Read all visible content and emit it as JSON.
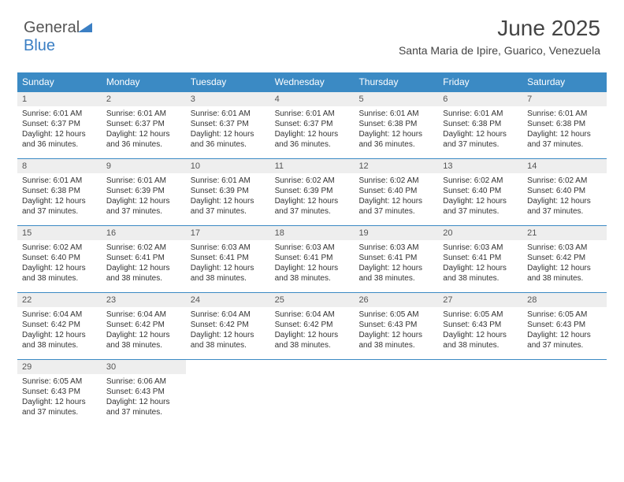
{
  "logo": {
    "part1": "General",
    "part2": "Blue"
  },
  "header": {
    "month": "June 2025",
    "location": "Santa Maria de Ipire, Guarico, Venezuela"
  },
  "colors": {
    "header_bg": "#3b8ac4",
    "header_text": "#ffffff",
    "daynum_bg": "#eeeeee",
    "border": "#3b8ac4",
    "body_text": "#333333"
  },
  "daynames": [
    "Sunday",
    "Monday",
    "Tuesday",
    "Wednesday",
    "Thursday",
    "Friday",
    "Saturday"
  ],
  "weeks": [
    [
      {
        "n": "1",
        "sr": "Sunrise: 6:01 AM",
        "ss": "Sunset: 6:37 PM",
        "dl1": "Daylight: 12 hours",
        "dl2": "and 36 minutes."
      },
      {
        "n": "2",
        "sr": "Sunrise: 6:01 AM",
        "ss": "Sunset: 6:37 PM",
        "dl1": "Daylight: 12 hours",
        "dl2": "and 36 minutes."
      },
      {
        "n": "3",
        "sr": "Sunrise: 6:01 AM",
        "ss": "Sunset: 6:37 PM",
        "dl1": "Daylight: 12 hours",
        "dl2": "and 36 minutes."
      },
      {
        "n": "4",
        "sr": "Sunrise: 6:01 AM",
        "ss": "Sunset: 6:37 PM",
        "dl1": "Daylight: 12 hours",
        "dl2": "and 36 minutes."
      },
      {
        "n": "5",
        "sr": "Sunrise: 6:01 AM",
        "ss": "Sunset: 6:38 PM",
        "dl1": "Daylight: 12 hours",
        "dl2": "and 36 minutes."
      },
      {
        "n": "6",
        "sr": "Sunrise: 6:01 AM",
        "ss": "Sunset: 6:38 PM",
        "dl1": "Daylight: 12 hours",
        "dl2": "and 37 minutes."
      },
      {
        "n": "7",
        "sr": "Sunrise: 6:01 AM",
        "ss": "Sunset: 6:38 PM",
        "dl1": "Daylight: 12 hours",
        "dl2": "and 37 minutes."
      }
    ],
    [
      {
        "n": "8",
        "sr": "Sunrise: 6:01 AM",
        "ss": "Sunset: 6:38 PM",
        "dl1": "Daylight: 12 hours",
        "dl2": "and 37 minutes."
      },
      {
        "n": "9",
        "sr": "Sunrise: 6:01 AM",
        "ss": "Sunset: 6:39 PM",
        "dl1": "Daylight: 12 hours",
        "dl2": "and 37 minutes."
      },
      {
        "n": "10",
        "sr": "Sunrise: 6:01 AM",
        "ss": "Sunset: 6:39 PM",
        "dl1": "Daylight: 12 hours",
        "dl2": "and 37 minutes."
      },
      {
        "n": "11",
        "sr": "Sunrise: 6:02 AM",
        "ss": "Sunset: 6:39 PM",
        "dl1": "Daylight: 12 hours",
        "dl2": "and 37 minutes."
      },
      {
        "n": "12",
        "sr": "Sunrise: 6:02 AM",
        "ss": "Sunset: 6:40 PM",
        "dl1": "Daylight: 12 hours",
        "dl2": "and 37 minutes."
      },
      {
        "n": "13",
        "sr": "Sunrise: 6:02 AM",
        "ss": "Sunset: 6:40 PM",
        "dl1": "Daylight: 12 hours",
        "dl2": "and 37 minutes."
      },
      {
        "n": "14",
        "sr": "Sunrise: 6:02 AM",
        "ss": "Sunset: 6:40 PM",
        "dl1": "Daylight: 12 hours",
        "dl2": "and 37 minutes."
      }
    ],
    [
      {
        "n": "15",
        "sr": "Sunrise: 6:02 AM",
        "ss": "Sunset: 6:40 PM",
        "dl1": "Daylight: 12 hours",
        "dl2": "and 38 minutes."
      },
      {
        "n": "16",
        "sr": "Sunrise: 6:02 AM",
        "ss": "Sunset: 6:41 PM",
        "dl1": "Daylight: 12 hours",
        "dl2": "and 38 minutes."
      },
      {
        "n": "17",
        "sr": "Sunrise: 6:03 AM",
        "ss": "Sunset: 6:41 PM",
        "dl1": "Daylight: 12 hours",
        "dl2": "and 38 minutes."
      },
      {
        "n": "18",
        "sr": "Sunrise: 6:03 AM",
        "ss": "Sunset: 6:41 PM",
        "dl1": "Daylight: 12 hours",
        "dl2": "and 38 minutes."
      },
      {
        "n": "19",
        "sr": "Sunrise: 6:03 AM",
        "ss": "Sunset: 6:41 PM",
        "dl1": "Daylight: 12 hours",
        "dl2": "and 38 minutes."
      },
      {
        "n": "20",
        "sr": "Sunrise: 6:03 AM",
        "ss": "Sunset: 6:41 PM",
        "dl1": "Daylight: 12 hours",
        "dl2": "and 38 minutes."
      },
      {
        "n": "21",
        "sr": "Sunrise: 6:03 AM",
        "ss": "Sunset: 6:42 PM",
        "dl1": "Daylight: 12 hours",
        "dl2": "and 38 minutes."
      }
    ],
    [
      {
        "n": "22",
        "sr": "Sunrise: 6:04 AM",
        "ss": "Sunset: 6:42 PM",
        "dl1": "Daylight: 12 hours",
        "dl2": "and 38 minutes."
      },
      {
        "n": "23",
        "sr": "Sunrise: 6:04 AM",
        "ss": "Sunset: 6:42 PM",
        "dl1": "Daylight: 12 hours",
        "dl2": "and 38 minutes."
      },
      {
        "n": "24",
        "sr": "Sunrise: 6:04 AM",
        "ss": "Sunset: 6:42 PM",
        "dl1": "Daylight: 12 hours",
        "dl2": "and 38 minutes."
      },
      {
        "n": "25",
        "sr": "Sunrise: 6:04 AM",
        "ss": "Sunset: 6:42 PM",
        "dl1": "Daylight: 12 hours",
        "dl2": "and 38 minutes."
      },
      {
        "n": "26",
        "sr": "Sunrise: 6:05 AM",
        "ss": "Sunset: 6:43 PM",
        "dl1": "Daylight: 12 hours",
        "dl2": "and 38 minutes."
      },
      {
        "n": "27",
        "sr": "Sunrise: 6:05 AM",
        "ss": "Sunset: 6:43 PM",
        "dl1": "Daylight: 12 hours",
        "dl2": "and 38 minutes."
      },
      {
        "n": "28",
        "sr": "Sunrise: 6:05 AM",
        "ss": "Sunset: 6:43 PM",
        "dl1": "Daylight: 12 hours",
        "dl2": "and 37 minutes."
      }
    ],
    [
      {
        "n": "29",
        "sr": "Sunrise: 6:05 AM",
        "ss": "Sunset: 6:43 PM",
        "dl1": "Daylight: 12 hours",
        "dl2": "and 37 minutes."
      },
      {
        "n": "30",
        "sr": "Sunrise: 6:06 AM",
        "ss": "Sunset: 6:43 PM",
        "dl1": "Daylight: 12 hours",
        "dl2": "and 37 minutes."
      },
      {
        "empty": true
      },
      {
        "empty": true
      },
      {
        "empty": true
      },
      {
        "empty": true
      },
      {
        "empty": true
      }
    ]
  ]
}
